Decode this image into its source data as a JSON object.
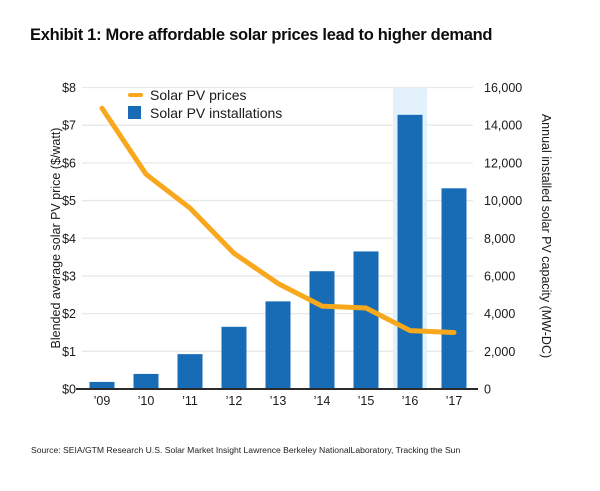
{
  "title": "Exhibit 1: More affordable solar prices lead to higher demand",
  "source": "Source: SEIA/GTM Research U.S. Solar Market Insight Lawrence Berkeley NationalLaboratory, Tracking the Sun",
  "legend": {
    "price_label": "Solar PV prices",
    "installations_label": "Solar PV installations"
  },
  "colors": {
    "bar": "#176CB5",
    "bar_halo": "#E3F1FB",
    "line": "#F8A81D",
    "grid": "#E8E8E8",
    "axis": "#2B2B2B",
    "text": "#1A1A1A"
  },
  "chart_data": {
    "type": "combo",
    "categories": [
      "’09",
      "’10",
      "’11",
      "’12",
      "’13",
      "’14",
      "’15",
      "’16",
      "’17"
    ],
    "series": [
      {
        "name": "Solar PV prices",
        "type": "line",
        "axis": "left",
        "color": "#F8A81D",
        "values": [
          7.45,
          5.7,
          4.8,
          3.6,
          2.8,
          2.2,
          2.15,
          1.55,
          1.5
        ]
      },
      {
        "name": "Solar PV installations",
        "type": "bar",
        "axis": "right",
        "color": "#176CB5",
        "values": [
          375,
          800,
          1850,
          3300,
          4650,
          6250,
          7300,
          14550,
          10650
        ]
      }
    ],
    "left_axis": {
      "label": "Blended average solar PV price ($/watt)",
      "min": 0,
      "max": 8,
      "step": 1,
      "ticks": [
        "$8",
        "$7",
        "$6",
        "$5",
        "$4",
        "$3",
        "$2",
        "$1",
        "$0"
      ]
    },
    "right_axis": {
      "label": "Annual installed solar PV capacity (MW-DC)",
      "min": 0,
      "max": 16000,
      "step": 2000,
      "ticks": [
        "16,000",
        "14,000",
        "12,000",
        "10,000",
        "8,000",
        "6,000",
        "4,000",
        "2,000",
        "0"
      ]
    },
    "legend_position": "top-left-inside",
    "grid": "horizontal"
  }
}
